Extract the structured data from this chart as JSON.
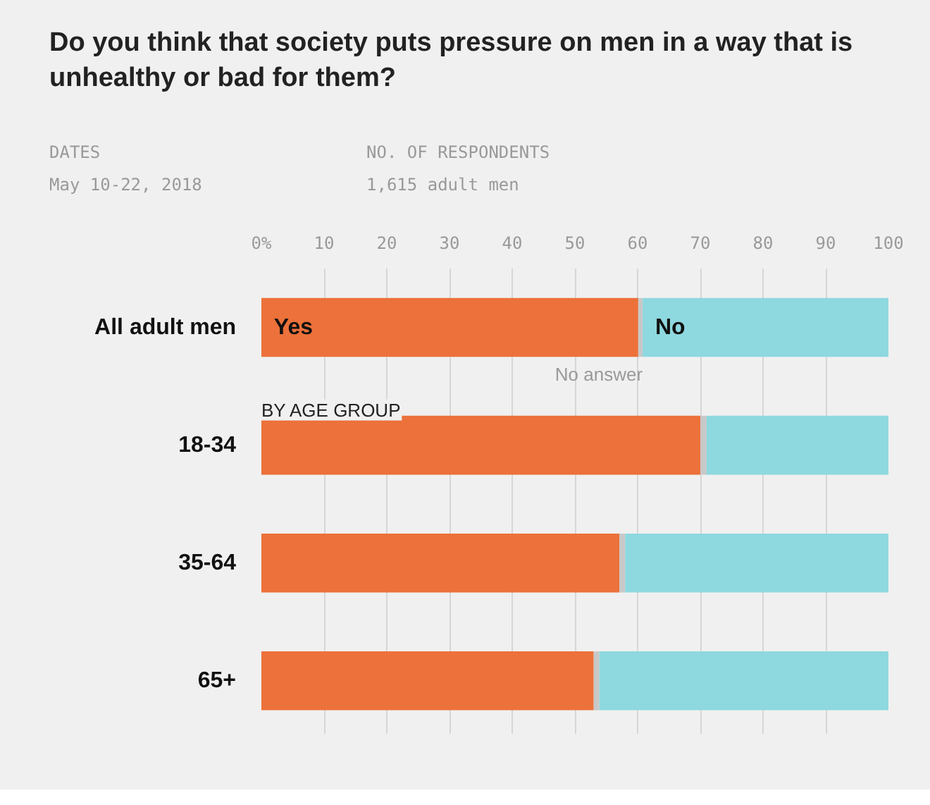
{
  "chart_data": {
    "type": "bar",
    "orientation": "horizontal",
    "stacked": true,
    "title": "Do you think that society puts pressure on men in a way that is unhealthy or bad for them?",
    "categories": [
      "All adult men",
      "18-34",
      "35-64",
      "65+"
    ],
    "series": [
      {
        "name": "Yes",
        "color": "#ec713a",
        "values": [
          60.1,
          70.0,
          57.1,
          53.0
        ]
      },
      {
        "name": "No answer",
        "color": "#c8c8c8",
        "values": [
          0.7,
          1.0,
          0.9,
          0.9
        ]
      },
      {
        "name": "No",
        "color": "#8ed8df",
        "values": [
          39.2,
          29.0,
          42.0,
          46.1
        ]
      }
    ],
    "xlim": [
      0,
      100
    ],
    "xticks": [
      {
        "value": 0,
        "label": "0%"
      },
      10,
      20,
      30,
      40,
      50,
      60,
      70,
      80,
      90,
      100
    ],
    "grid": "x",
    "legend": false,
    "annotations": [
      "DATES",
      "May 10-22, 2018",
      "NO. OF RESPONDENTS",
      "1,615 adult men",
      "BY AGE GROUP"
    ]
  }
}
